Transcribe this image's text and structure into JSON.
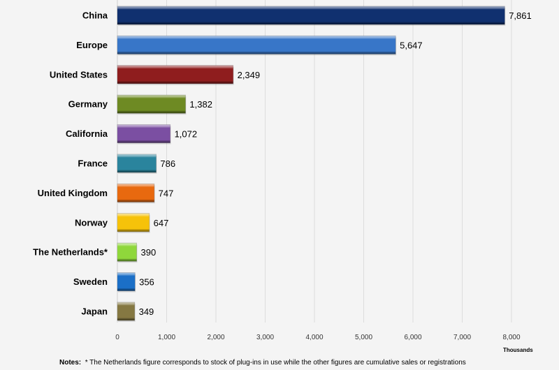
{
  "chart_data": {
    "type": "bar",
    "orientation": "horizontal",
    "categories": [
      "China",
      "Europe",
      "United States",
      "Germany",
      "California",
      "France",
      "United Kingdom",
      "Norway",
      "The Netherlands*",
      "Sweden",
      "Japan"
    ],
    "values": [
      7861,
      5647,
      2349,
      1382,
      1072,
      786,
      747,
      647,
      390,
      356,
      349
    ],
    "value_labels": [
      "7,861",
      "5,647",
      "2,349",
      "1,382",
      "1,072",
      "786",
      "747",
      "647",
      "390",
      "356",
      "349"
    ],
    "colors": [
      "#10306f",
      "#3876c8",
      "#8f1d1e",
      "#6e8a23",
      "#7b4fa2",
      "#2a849d",
      "#e8690f",
      "#f6c20a",
      "#8fd73b",
      "#1b6fc7",
      "#857842"
    ],
    "xlim": [
      0,
      8000
    ],
    "xticks": [
      0,
      1000,
      2000,
      3000,
      4000,
      5000,
      6000,
      7000,
      8000
    ],
    "xtick_labels": [
      "0",
      "1,000",
      "2,000",
      "3,000",
      "4,000",
      "5,000",
      "6,000",
      "7,000",
      "8,000"
    ],
    "xlabel": "Thousands",
    "grid": "vertical",
    "notes_label": "Notes:",
    "notes_text": "* The Netherlands figure corresponds  to stock of plug-ins in use while the other figures are cumulative sales or registrations"
  }
}
